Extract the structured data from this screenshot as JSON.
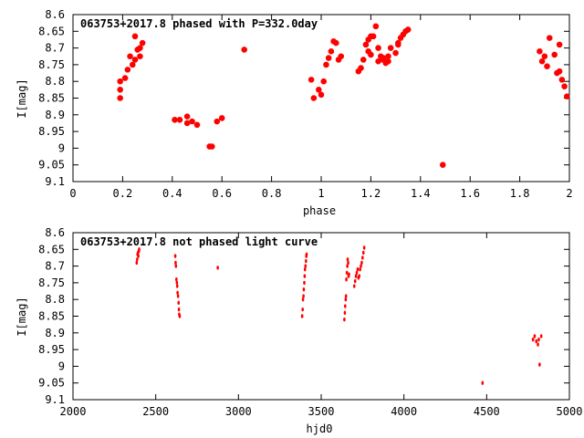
{
  "colors": {
    "points": "#ff0000",
    "axes": "#000000",
    "background": "#ffffff"
  },
  "chart_data": [
    {
      "type": "scatter",
      "title": "063753+2017.8 phased with P=332.0day",
      "xlabel": "phase",
      "ylabel": "I[mag]",
      "xlim": [
        0,
        2
      ],
      "ylim": [
        9.1,
        8.6
      ],
      "y_inverted": true,
      "grid": false,
      "x_ticks": [
        "0",
        "0.2",
        "0.4",
        "0.6",
        "0.8",
        "1",
        "1.2",
        "1.4",
        "1.6",
        "1.8",
        "2"
      ],
      "y_ticks": [
        "8.6",
        "8.65",
        "8.7",
        "8.75",
        "8.8",
        "8.85",
        "8.9",
        "8.95",
        "9",
        "9.05",
        "9.1"
      ],
      "marker": "star",
      "x": [
        0.19,
        0.19,
        0.19,
        0.21,
        0.22,
        0.23,
        0.24,
        0.25,
        0.25,
        0.26,
        0.27,
        0.27,
        0.28,
        0.41,
        0.43,
        0.46,
        0.46,
        0.48,
        0.5,
        0.55,
        0.56,
        0.58,
        0.6,
        0.69,
        0.96,
        0.97,
        0.99,
        1.0,
        1.01,
        1.02,
        1.03,
        1.04,
        1.05,
        1.06,
        1.07,
        1.08,
        1.15,
        1.16,
        1.17,
        1.18,
        1.19,
        1.19,
        1.2,
        1.2,
        1.21,
        1.22,
        1.23,
        1.23,
        1.24,
        1.25,
        1.25,
        1.26,
        1.27,
        1.27,
        1.28,
        1.3,
        1.31,
        1.31,
        1.32,
        1.33,
        1.34,
        1.35,
        1.49,
        1.88,
        1.89,
        1.9,
        1.91,
        1.92,
        1.94,
        1.95,
        1.96,
        1.96,
        1.97,
        1.98,
        1.99
      ],
      "y": [
        8.8,
        8.825,
        8.85,
        8.79,
        8.765,
        8.725,
        8.75,
        8.735,
        8.665,
        8.705,
        8.725,
        8.7,
        8.685,
        8.915,
        8.915,
        8.905,
        8.925,
        8.92,
        8.93,
        8.995,
        8.995,
        8.92,
        8.91,
        8.705,
        8.795,
        8.85,
        8.825,
        8.84,
        8.8,
        8.75,
        8.73,
        8.71,
        8.68,
        8.685,
        8.735,
        8.725,
        8.77,
        8.76,
        8.735,
        8.69,
        8.71,
        8.675,
        8.72,
        8.665,
        8.665,
        8.635,
        8.7,
        8.74,
        8.725,
        8.735,
        8.73,
        8.745,
        8.725,
        8.74,
        8.7,
        8.715,
        8.69,
        8.685,
        8.67,
        8.66,
        8.65,
        8.645,
        9.05,
        8.71,
        8.74,
        8.725,
        8.755,
        8.67,
        8.72,
        8.775,
        8.69,
        8.77,
        8.795,
        8.815,
        8.845
      ]
    },
    {
      "type": "scatter",
      "title": "063753+2017.8 not phased light curve",
      "xlabel": "hjd0",
      "ylabel": "I[mag]",
      "xlim": [
        2000,
        5000
      ],
      "ylim": [
        9.1,
        8.6
      ],
      "y_inverted": true,
      "grid": false,
      "x_ticks": [
        "2000",
        "2500",
        "3000",
        "3500",
        "4000",
        "4500",
        "5000"
      ],
      "y_ticks": [
        "8.6",
        "8.65",
        "8.7",
        "8.75",
        "8.8",
        "8.85",
        "8.9",
        "8.95",
        "9",
        "9.05",
        "9.1"
      ],
      "marker": "dot",
      "x": [
        2385,
        2388,
        2390,
        2393,
        2395,
        2398,
        2400,
        2618,
        2620,
        2622,
        2625,
        2628,
        2630,
        2632,
        2635,
        2638,
        2640,
        2642,
        2645,
        2875,
        3385,
        3388,
        3390,
        3393,
        3395,
        3398,
        3400,
        3402,
        3405,
        3408,
        3410,
        3412,
        3640,
        3643,
        3645,
        3648,
        3650,
        3652,
        3655,
        3658,
        3660,
        3663,
        3665,
        3668,
        3700,
        3705,
        3710,
        3715,
        3720,
        3725,
        3730,
        3735,
        3740,
        3745,
        3750,
        3755,
        3760,
        4475,
        4780,
        4790,
        4800,
        4810,
        4815,
        4820,
        4830
      ],
      "y": [
        8.69,
        8.68,
        8.665,
        8.66,
        8.67,
        8.655,
        8.65,
        8.67,
        8.69,
        8.7,
        8.74,
        8.75,
        8.76,
        8.78,
        8.79,
        8.81,
        8.83,
        8.845,
        8.85,
        8.705,
        8.85,
        8.83,
        8.8,
        8.79,
        8.77,
        8.75,
        8.73,
        8.71,
        8.7,
        8.685,
        8.67,
        8.665,
        8.86,
        8.84,
        8.82,
        8.8,
        8.79,
        8.74,
        8.72,
        8.7,
        8.68,
        8.69,
        8.73,
        8.725,
        8.76,
        8.745,
        8.73,
        8.72,
        8.71,
        8.735,
        8.73,
        8.71,
        8.7,
        8.69,
        8.675,
        8.66,
        8.645,
        9.05,
        8.92,
        8.91,
        8.925,
        8.935,
        8.92,
        8.995,
        8.91
      ]
    }
  ]
}
